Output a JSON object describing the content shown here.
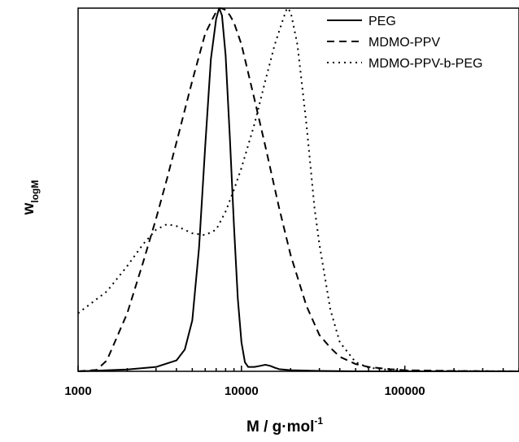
{
  "chart_data": {
    "type": "line",
    "xscale": "log",
    "xlim": [
      1000,
      500000
    ],
    "ylim": [
      0,
      1.0
    ],
    "xticks": [
      1000,
      10000,
      100000
    ],
    "xtick_labels": [
      "1000",
      "10000",
      "100000"
    ],
    "xlabel_main": "M / g·mol",
    "xlabel_sup": "-1",
    "ylabel_main": "w",
    "ylabel_sub": "logM",
    "grid": false,
    "legend_position": "top-right",
    "series": [
      {
        "name": "PEG",
        "style": "solid",
        "x": [
          1000,
          2000,
          3000,
          4000,
          4500,
          5000,
          5500,
          6000,
          6500,
          7000,
          7300,
          7600,
          8000,
          8500,
          9000,
          9500,
          10000,
          10500,
          11000,
          12000,
          13000,
          14000,
          15000,
          16000,
          17000,
          20000,
          30000,
          50000,
          100000,
          500000
        ],
        "y": [
          0.0,
          0.005,
          0.012,
          0.03,
          0.06,
          0.14,
          0.34,
          0.62,
          0.86,
          0.97,
          1.0,
          0.98,
          0.87,
          0.64,
          0.4,
          0.2,
          0.08,
          0.025,
          0.012,
          0.012,
          0.015,
          0.018,
          0.015,
          0.01,
          0.006,
          0.003,
          0.001,
          0.0,
          0.0,
          0.0
        ]
      },
      {
        "name": "MDMO-PPV",
        "style": "dashed",
        "x": [
          1000,
          1300,
          1500,
          2000,
          2500,
          3000,
          3500,
          4000,
          5000,
          6000,
          7000,
          7500,
          8000,
          8500,
          9000,
          10000,
          12000,
          14000,
          17000,
          20000,
          25000,
          30000,
          35000,
          40000,
          50000,
          60000,
          80000,
          100000,
          200000,
          500000
        ],
        "y": [
          0.0,
          0.004,
          0.03,
          0.16,
          0.3,
          0.42,
          0.53,
          0.63,
          0.8,
          0.93,
          0.99,
          1.0,
          0.995,
          0.98,
          0.96,
          0.9,
          0.75,
          0.62,
          0.45,
          0.32,
          0.18,
          0.1,
          0.065,
          0.04,
          0.02,
          0.012,
          0.006,
          0.003,
          0.001,
          0.0
        ]
      },
      {
        "name": "MDMO-PPV-b-PEG",
        "style": "dotted",
        "x": [
          1000,
          1500,
          2000,
          2500,
          3000,
          3500,
          4000,
          5000,
          6000,
          7000,
          8000,
          9000,
          10000,
          12000,
          14000,
          16000,
          18000,
          19000,
          20000,
          22000,
          25000,
          28000,
          30000,
          35000,
          40000,
          50000,
          60000,
          80000,
          100000,
          500000
        ],
        "y": [
          0.16,
          0.22,
          0.29,
          0.35,
          0.39,
          0.405,
          0.4,
          0.38,
          0.375,
          0.39,
          0.44,
          0.5,
          0.56,
          0.68,
          0.8,
          0.9,
          0.97,
          1.0,
          0.99,
          0.9,
          0.68,
          0.45,
          0.35,
          0.17,
          0.08,
          0.025,
          0.01,
          0.004,
          0.002,
          0.0
        ]
      }
    ]
  }
}
